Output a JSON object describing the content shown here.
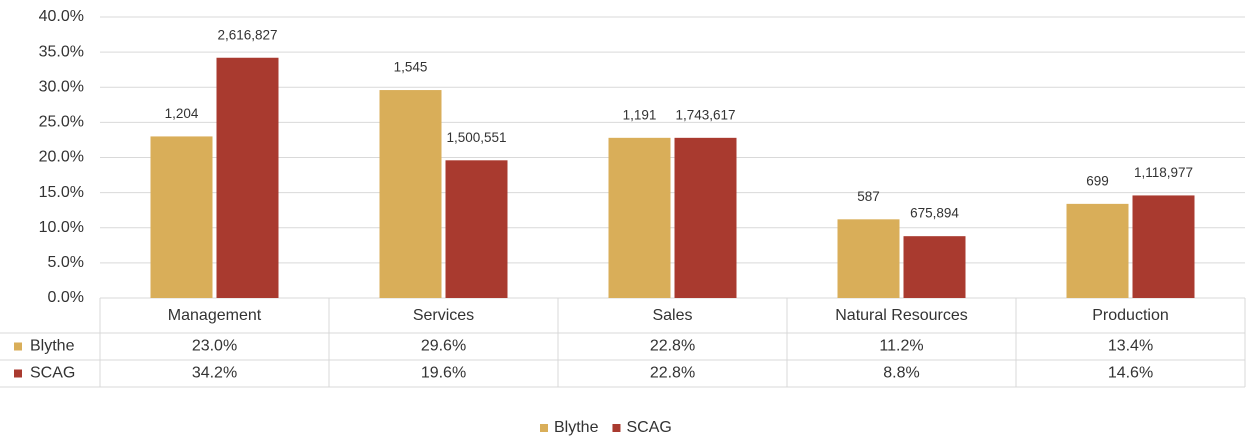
{
  "chart_data": {
    "type": "bar",
    "categories": [
      "Management",
      "Services",
      "Sales",
      "Natural Resources",
      "Production"
    ],
    "series": [
      {
        "name": "Blythe",
        "color": "#d9ae59",
        "values": [
          23.0,
          29.6,
          22.8,
          11.2,
          13.4
        ],
        "value_labels": [
          "23.0%",
          "29.6%",
          "22.8%",
          "11.2%",
          "13.4%"
        ],
        "data_labels": [
          {
            "value": 1204,
            "label": "1,204"
          },
          {
            "value": 1545,
            "label": "1,545"
          },
          {
            "value": 1191,
            "label": "1,191"
          },
          {
            "value": 587,
            "label": "587"
          },
          {
            "value": 699,
            "label": "699"
          }
        ]
      },
      {
        "name": "SCAG",
        "color": "#a93a2f",
        "values": [
          34.2,
          19.6,
          22.8,
          8.8,
          14.6
        ],
        "value_labels": [
          "34.2%",
          "19.6%",
          "22.8%",
          "8.8%",
          "14.6%"
        ],
        "data_labels": [
          {
            "value": 2616827,
            "label": "2,616,827"
          },
          {
            "value": 1500551,
            "label": "1,500,551"
          },
          {
            "value": 1743617,
            "label": "1,743,617"
          },
          {
            "value": 675894,
            "label": "675,894"
          },
          {
            "value": 1118977,
            "label": "1,118,977"
          }
        ]
      }
    ],
    "ylim": [
      0,
      40
    ],
    "yticks": [
      {
        "value": 0,
        "label": "0.0%"
      },
      {
        "value": 5,
        "label": "5.0%"
      },
      {
        "value": 10,
        "label": "10.0%"
      },
      {
        "value": 15,
        "label": "15.0%"
      },
      {
        "value": 20,
        "label": "20.0%"
      },
      {
        "value": 25,
        "label": "25.0%"
      },
      {
        "value": 30,
        "label": "30.0%"
      },
      {
        "value": 35,
        "label": "35.0%"
      },
      {
        "value": 40,
        "label": "40.0%"
      }
    ],
    "grid": true,
    "legend": "bottom"
  }
}
